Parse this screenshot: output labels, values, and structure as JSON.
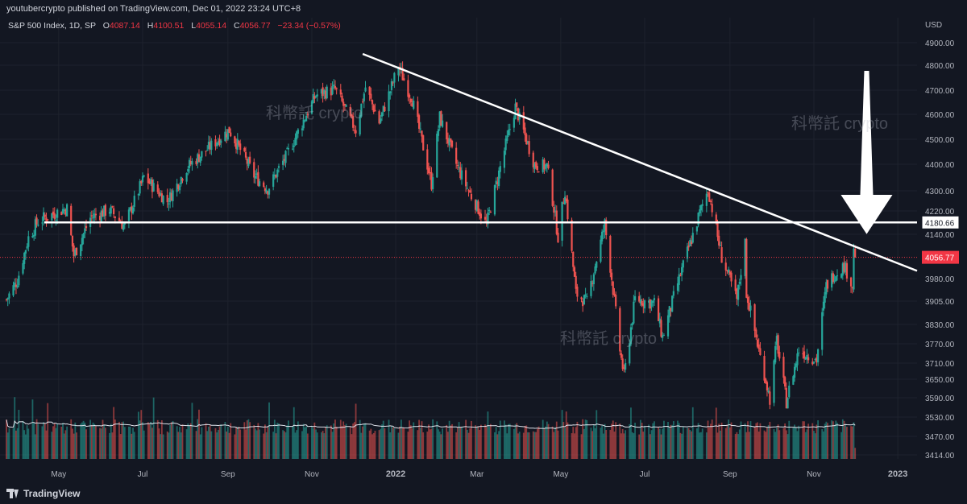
{
  "header": {
    "publisher_line": "youtubercrypto published on TradingView.com, Dec 01, 2022 23:24 UTC+8"
  },
  "legend": {
    "symbol": "S&P 500 Index, 1D, SP",
    "open_label": "O",
    "open": "4087.14",
    "high_label": "H",
    "high": "4100.51",
    "low_label": "L",
    "low": "4055.14",
    "close_label": "C",
    "close": "4056.77",
    "change": "−23.34 (−0.57%)"
  },
  "watermarks": [
    "科幣託 crypto",
    "科幣託 crypto",
    "科幣託 crypto"
  ],
  "footer": {
    "brand": "TradingView"
  },
  "colors": {
    "background": "#131722",
    "up": "#26a69a",
    "down": "#ef5350",
    "line": "#ffffff",
    "price_tag": "#f23645"
  },
  "chart_data": {
    "type": "candlestick",
    "price_axis_unit": "USD",
    "y_ticks": [
      "4900.00",
      "4800.00",
      "4700.00",
      "4600.00",
      "4500.00",
      "4400.00",
      "4300.00",
      "4220.00",
      "4140.00",
      "3980.00",
      "3905.00",
      "3830.00",
      "3770.00",
      "3710.00",
      "3650.00",
      "3590.00",
      "3530.00",
      "3470.00",
      "3414.00"
    ],
    "x_ticks": [
      "May",
      "Jul",
      "Sep",
      "Nov",
      "2022",
      "Mar",
      "May",
      "Jul",
      "Sep",
      "Nov",
      "2023"
    ],
    "ylim": [
      3400,
      4960
    ],
    "x_range": [
      "2021-03-24",
      "2023-01-15"
    ],
    "horizontal_line": {
      "price": 4180.66,
      "label": "4180.66"
    },
    "last_price": {
      "price": 4056.77,
      "label": "4056.77"
    },
    "trendline": {
      "from": [
        "2021-12-08",
        4850
      ],
      "to": [
        "2023-01-15",
        4008
      ]
    },
    "annotation_arrow": {
      "points_to": [
        "2022-11-30",
        4100
      ]
    },
    "price_path_anchors": [
      [
        "2021-03-24",
        3910
      ],
      [
        "2021-04-01",
        3975
      ],
      [
        "2021-04-09",
        4128
      ],
      [
        "2021-04-16",
        4185
      ],
      [
        "2021-05-07",
        4232
      ],
      [
        "2021-05-12",
        4063
      ],
      [
        "2021-05-24",
        4197
      ],
      [
        "2021-06-07",
        4226
      ],
      [
        "2021-06-18",
        4166
      ],
      [
        "2021-07-02",
        4352
      ],
      [
        "2021-07-19",
        4258
      ],
      [
        "2021-08-02",
        4387
      ],
      [
        "2021-08-27",
        4509
      ],
      [
        "2021-09-02",
        4537
      ],
      [
        "2021-09-20",
        4358
      ],
      [
        "2021-09-30",
        4307
      ],
      [
        "2021-10-14",
        4438
      ],
      [
        "2021-11-04",
        4680
      ],
      [
        "2021-11-18",
        4704
      ],
      [
        "2021-11-30",
        4567
      ],
      [
        "2021-12-03",
        4538
      ],
      [
        "2021-12-10",
        4712
      ],
      [
        "2021-12-20",
        4568
      ],
      [
        "2022-01-03",
        4796
      ],
      [
        "2022-01-13",
        4659
      ],
      [
        "2022-01-27",
        4326
      ],
      [
        "2022-02-02",
        4589
      ],
      [
        "2022-02-14",
        4401
      ],
      [
        "2022-02-24",
        4288
      ],
      [
        "2022-03-08",
        4170
      ],
      [
        "2022-03-29",
        4631
      ],
      [
        "2022-04-12",
        4397
      ],
      [
        "2022-04-21",
        4393
      ],
      [
        "2022-04-29",
        4132
      ],
      [
        "2022-05-04",
        4300
      ],
      [
        "2022-05-12",
        3930
      ],
      [
        "2022-05-20",
        3901
      ],
      [
        "2022-06-02",
        4176
      ],
      [
        "2022-06-13",
        3750
      ],
      [
        "2022-06-16",
        3667
      ],
      [
        "2022-06-24",
        3912
      ],
      [
        "2022-07-08",
        3899
      ],
      [
        "2022-07-14",
        3790
      ],
      [
        "2022-08-02",
        4091
      ],
      [
        "2022-08-16",
        4305
      ],
      [
        "2022-08-26",
        4057
      ],
      [
        "2022-09-06",
        3908
      ],
      [
        "2022-09-12",
        4110
      ],
      [
        "2022-09-13",
        3932
      ],
      [
        "2022-09-30",
        3586
      ],
      [
        "2022-10-05",
        3783
      ],
      [
        "2022-10-12",
        3577
      ],
      [
        "2022-10-21",
        3752
      ],
      [
        "2022-11-03",
        3720
      ],
      [
        "2022-11-10",
        3956
      ],
      [
        "2022-11-15",
        3992
      ],
      [
        "2022-11-23",
        4027
      ],
      [
        "2022-11-29",
        3958
      ],
      [
        "2022-11-30",
        4080
      ],
      [
        "2022-12-01",
        4057
      ]
    ]
  }
}
